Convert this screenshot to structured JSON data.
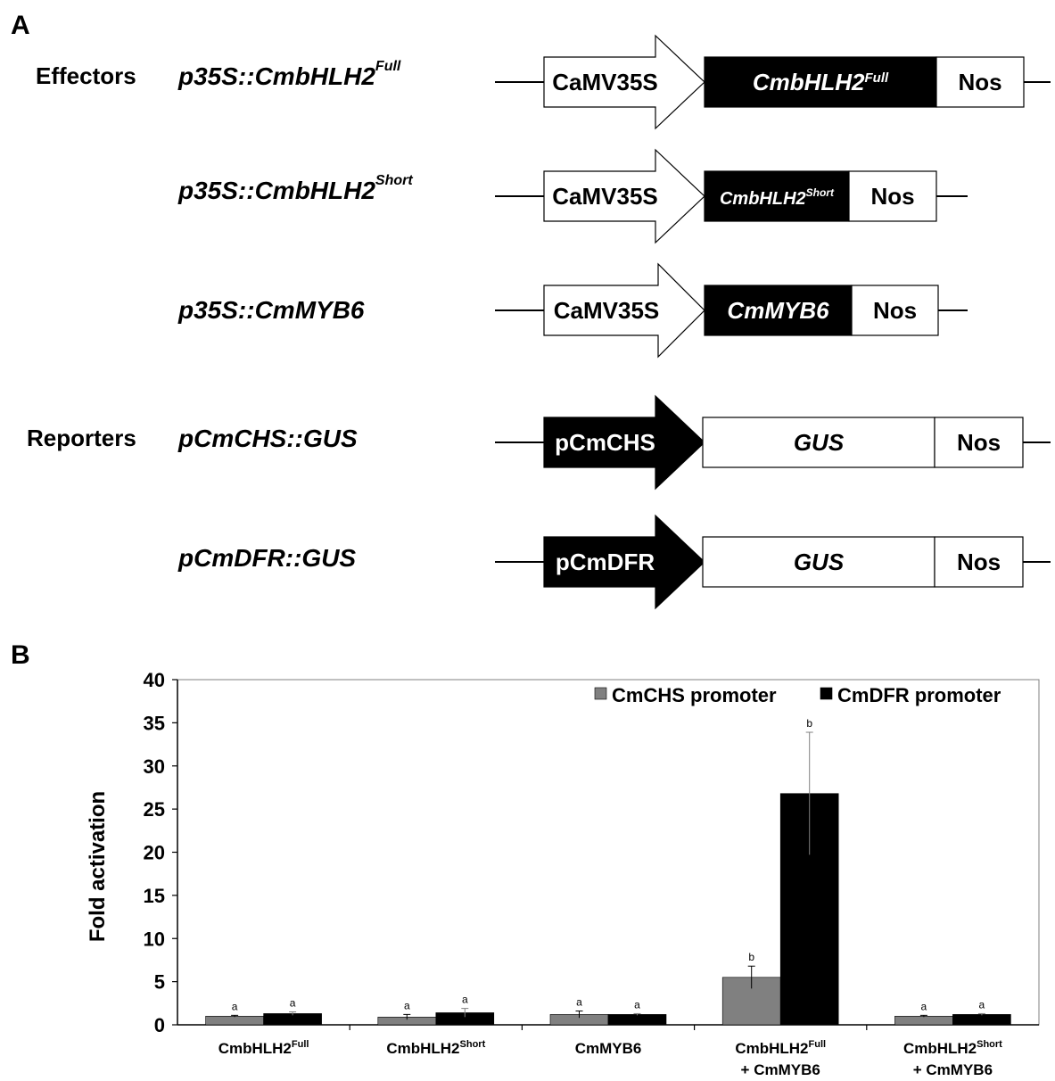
{
  "panel_a": {
    "letter": "A",
    "group_effectors": "Effectors",
    "group_reporters": "Reporters",
    "constructs": [
      {
        "name": "p35S::CmbHLH2",
        "sup": "Full",
        "promoter": "CaMV35S",
        "promoter_style": "open-arrow",
        "gene": "CmbHLH2",
        "gene_sup": "Full",
        "gene_italic": true,
        "gene_fill": "#000000",
        "terminator": "Nos"
      },
      {
        "name": "p35S::CmbHLH2",
        "sup": "Short",
        "promoter": "CaMV35S",
        "promoter_style": "open-arrow",
        "gene": "CmbHLH2",
        "gene_sup": "Short",
        "gene_italic": true,
        "gene_fill": "#000000",
        "terminator": "Nos"
      },
      {
        "name": "p35S::CmMYB6",
        "sup": "",
        "promoter": "CaMV35S",
        "promoter_style": "open-arrow",
        "gene": "CmMYB6",
        "gene_sup": "",
        "gene_italic": true,
        "gene_fill": "#000000",
        "terminator": "Nos"
      },
      {
        "name": "pCmCHS::GUS",
        "sup": "",
        "promoter": "pCmCHS",
        "promoter_style": "filled-arrow",
        "gene": "GUS",
        "gene_sup": "",
        "gene_italic": true,
        "gene_fill": "#ffffff",
        "terminator": "Nos"
      },
      {
        "name": "pCmDFR::GUS",
        "sup": "",
        "promoter": "pCmDFR",
        "promoter_style": "filled-arrow",
        "gene": "GUS",
        "gene_sup": "",
        "gene_italic": true,
        "gene_fill": "#ffffff",
        "terminator": "Nos"
      }
    ]
  },
  "panel_b": {
    "letter": "B"
  },
  "chart_data": {
    "type": "bar",
    "title": "",
    "xlabel": "",
    "ylabel": "Fold activation",
    "ylim": [
      0,
      40
    ],
    "yticks": [
      0,
      5,
      10,
      15,
      20,
      25,
      30,
      35,
      40
    ],
    "grid": false,
    "legend_position": "top-right",
    "categories": [
      {
        "main": "CmbHLH2",
        "sup": "Full",
        "line2": ""
      },
      {
        "main": "CmbHLH2",
        "sup": "Short",
        "line2": ""
      },
      {
        "main": "CmMYB6",
        "sup": "",
        "line2": ""
      },
      {
        "main": "CmbHLH2",
        "sup": "Full",
        "line2": "+ CmMYB6"
      },
      {
        "main": "CmbHLH2",
        "sup": "Short",
        "line2": "+ CmMYB6"
      }
    ],
    "series": [
      {
        "name": "CmCHS promoter",
        "color": "#808080",
        "values": [
          1.0,
          0.9,
          1.2,
          5.5,
          1.0
        ],
        "errors": [
          0.1,
          0.3,
          0.4,
          1.3,
          0.1
        ],
        "letters": [
          "a",
          "a",
          "a",
          "b",
          "a"
        ]
      },
      {
        "name": "CmDFR promoter",
        "color": "#000000",
        "values": [
          1.3,
          1.4,
          1.2,
          26.8,
          1.2
        ],
        "errors": [
          0.2,
          0.5,
          0.1,
          7.1,
          0.1
        ],
        "letters": [
          "a",
          "a",
          "a",
          "b",
          "a"
        ]
      }
    ]
  }
}
